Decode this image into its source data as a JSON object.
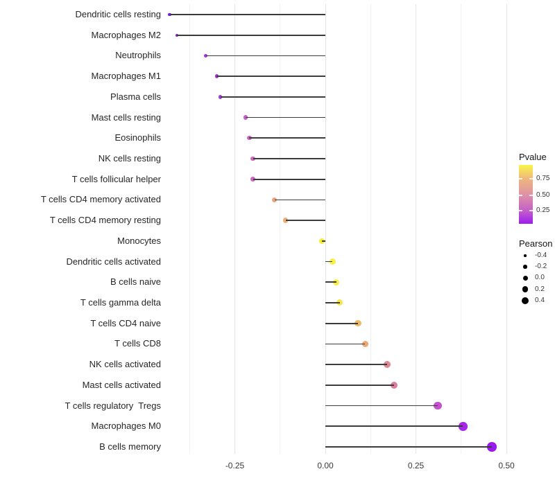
{
  "chart_data": {
    "type": "lollipop",
    "title": "",
    "xlabel": "",
    "ylabel": "",
    "x_tick_labels": [
      "-0.25",
      "0.00",
      "0.25",
      "0.50"
    ],
    "x_tick_values": [
      -0.25,
      0.0,
      0.25,
      0.5
    ],
    "x_minor_values": [
      -0.375,
      -0.125,
      0.125,
      0.375
    ],
    "xlim": [
      -0.445,
      0.515
    ],
    "grid": "vertical major+minor, light gray on white",
    "points": [
      {
        "label": "Dendritic cells resting",
        "pearson": -0.43,
        "color": "#8812EA",
        "size": 4.1
      },
      {
        "label": "Macrophages M2",
        "pearson": -0.41,
        "color": "#9117EC",
        "size": 4.4
      },
      {
        "label": "Neutrophils",
        "pearson": -0.33,
        "color": "#A62FDF",
        "size": 5.2
      },
      {
        "label": "Macrophages M1",
        "pearson": -0.3,
        "color": "#A935DB",
        "size": 5.5
      },
      {
        "label": "Plasma cells",
        "pearson": -0.29,
        "color": "#AB38D9",
        "size": 5.6
      },
      {
        "label": "Mast cells resting",
        "pearson": -0.22,
        "color": "#C65EC7",
        "size": 6.3
      },
      {
        "label": "Eosinophils",
        "pearson": -0.21,
        "color": "#CB64C3",
        "size": 6.4
      },
      {
        "label": "NK cells resting",
        "pearson": -0.2,
        "color": "#CC66C2",
        "size": 6.5
      },
      {
        "label": "T cells follicular helper",
        "pearson": -0.2,
        "color": "#CC66C2",
        "size": 6.5
      },
      {
        "label": "T cells CD4 memory activated",
        "pearson": -0.14,
        "color": "#E9A67E",
        "size": 7.1
      },
      {
        "label": "T cells CD4 memory resting",
        "pearson": -0.11,
        "color": "#ECAF78",
        "size": 7.5
      },
      {
        "label": "Monocytes",
        "pearson": -0.01,
        "color": "#F2EE33",
        "size": 8.5
      },
      {
        "label": "Dendritic cells activated",
        "pearson": 0.02,
        "color": "#F7F04A",
        "size": 8.8
      },
      {
        "label": "B cells naive",
        "pearson": 0.03,
        "color": "#F7EF4B",
        "size": 8.9
      },
      {
        "label": "T cells gamma delta",
        "pearson": 0.04,
        "color": "#F5E74D",
        "size": 9.0
      },
      {
        "label": "T cells CD4 naive",
        "pearson": 0.09,
        "color": "#EDBA6B",
        "size": 9.5
      },
      {
        "label": "T cells CD8",
        "pearson": 0.11,
        "color": "#E9A876",
        "size": 9.7
      },
      {
        "label": "NK cells activated",
        "pearson": 0.17,
        "color": "#DE8792",
        "size": 10.4
      },
      {
        "label": "Mast cells activated",
        "pearson": 0.19,
        "color": "#DA7F9D",
        "size": 10.6
      },
      {
        "label": "T cells regulatory  Tregs",
        "pearson": 0.31,
        "color": "#C252CD",
        "size": 11.8
      },
      {
        "label": "Macrophages M0",
        "pearson": 0.38,
        "color": "#A428E4",
        "size": 12.6
      },
      {
        "label": "B cells memory",
        "pearson": 0.46,
        "color": "#9A1AEE",
        "size": 13.4
      }
    ],
    "legend": {
      "pvalue": {
        "title": "Pvalue",
        "tick_labels": [
          "0.75",
          "0.50",
          "0.25"
        ],
        "gradient_top_to_bottom": [
          "#F9F54A",
          "#EFB67D",
          "#DD90A7",
          "#C55FC9",
          "#9C1CEF"
        ]
      },
      "pearson": {
        "title": "Pearson",
        "keys": [
          {
            "label": "-0.4",
            "size": 3.5
          },
          {
            "label": "-0.2",
            "size": 5.5
          },
          {
            "label": "0.0",
            "size": 7.0
          },
          {
            "label": "0.2",
            "size": 8.5
          },
          {
            "label": "0.4",
            "size": 10.0
          }
        ]
      }
    }
  }
}
